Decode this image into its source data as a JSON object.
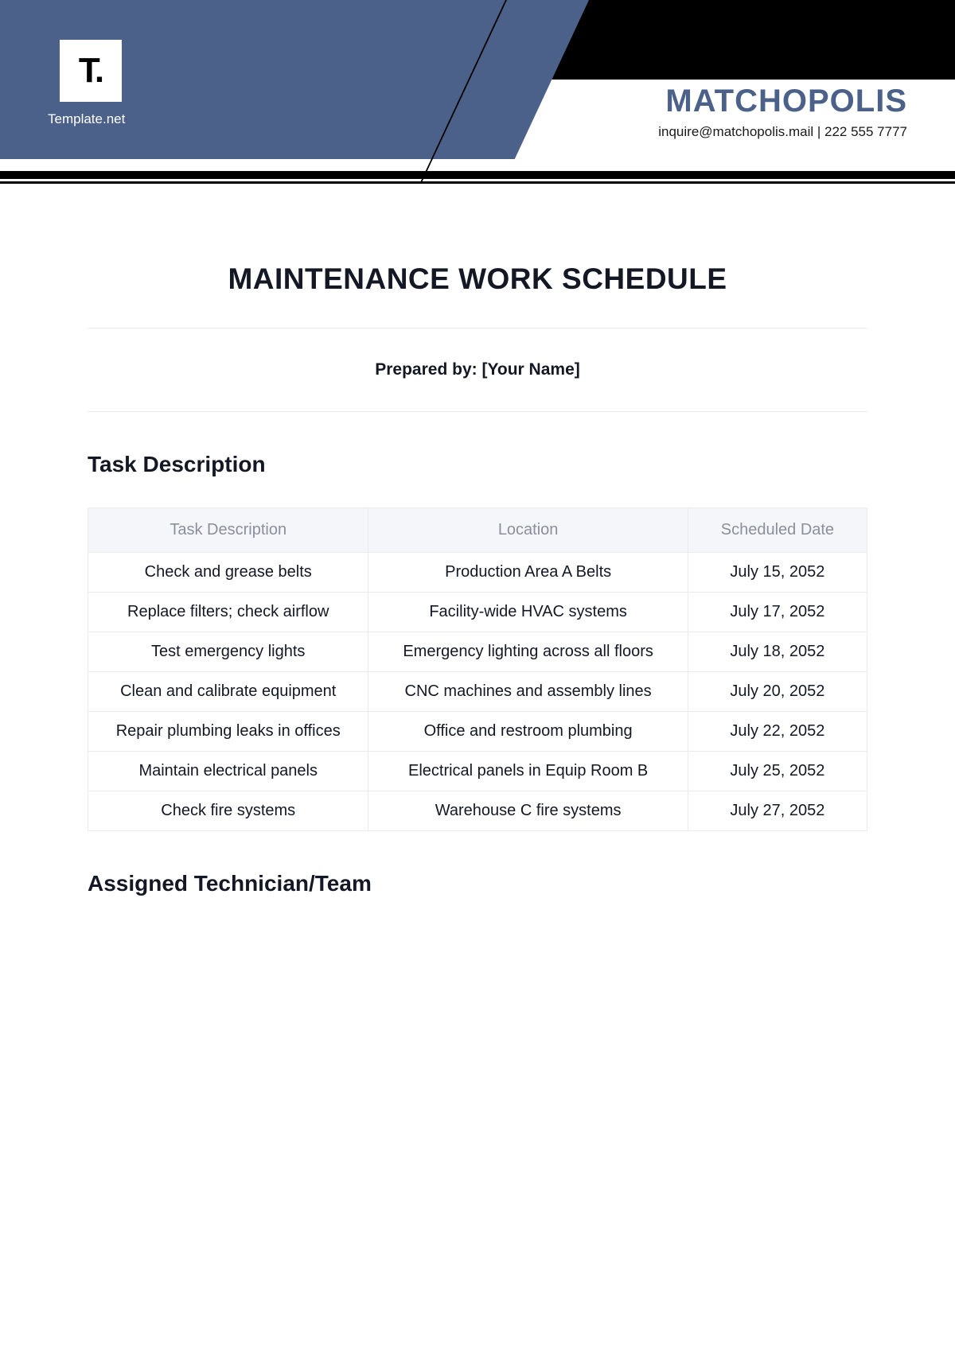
{
  "header": {
    "logo_text": "T.",
    "logo_caption": "Template.net",
    "company_name": "MATCHOPOLIS",
    "contact": "inquire@matchopolis.mail  |  222 555 7777",
    "colors": {
      "blue": "#4c6189",
      "black": "#000000",
      "white": "#ffffff"
    }
  },
  "document": {
    "title": "MAINTENANCE WORK SCHEDULE",
    "prepared_by": "Prepared by: [Your Name]",
    "section1_title": "Task Description",
    "section2_title": "Assigned Technician/Team"
  },
  "task_table": {
    "columns": [
      "Task Description",
      "Location",
      "Scheduled Date"
    ],
    "rows": [
      [
        "Check and grease belts",
        "Production Area A Belts",
        "July 15, 2052"
      ],
      [
        "Replace filters; check airflow",
        "Facility-wide HVAC systems",
        "July 17, 2052"
      ],
      [
        "Test emergency lights",
        "Emergency lighting across all floors",
        "July 18, 2052"
      ],
      [
        "Clean and calibrate equipment",
        "CNC machines and assembly lines",
        "July 20, 2052"
      ],
      [
        "Repair plumbing leaks in offices",
        "Office and restroom plumbing",
        "July 22, 2052"
      ],
      [
        "Maintain electrical panels",
        "Electrical panels in Equip Room B",
        "July 25, 2052"
      ],
      [
        "Check fire systems",
        "Warehouse C fire systems",
        "July 27, 2052"
      ]
    ],
    "header_bg": "#f5f6f9",
    "header_text_color": "#8a8f9c",
    "border_color": "#ebebeb",
    "cell_text_color": "#141824",
    "col_widths": [
      "36%",
      "41%",
      "23%"
    ]
  }
}
